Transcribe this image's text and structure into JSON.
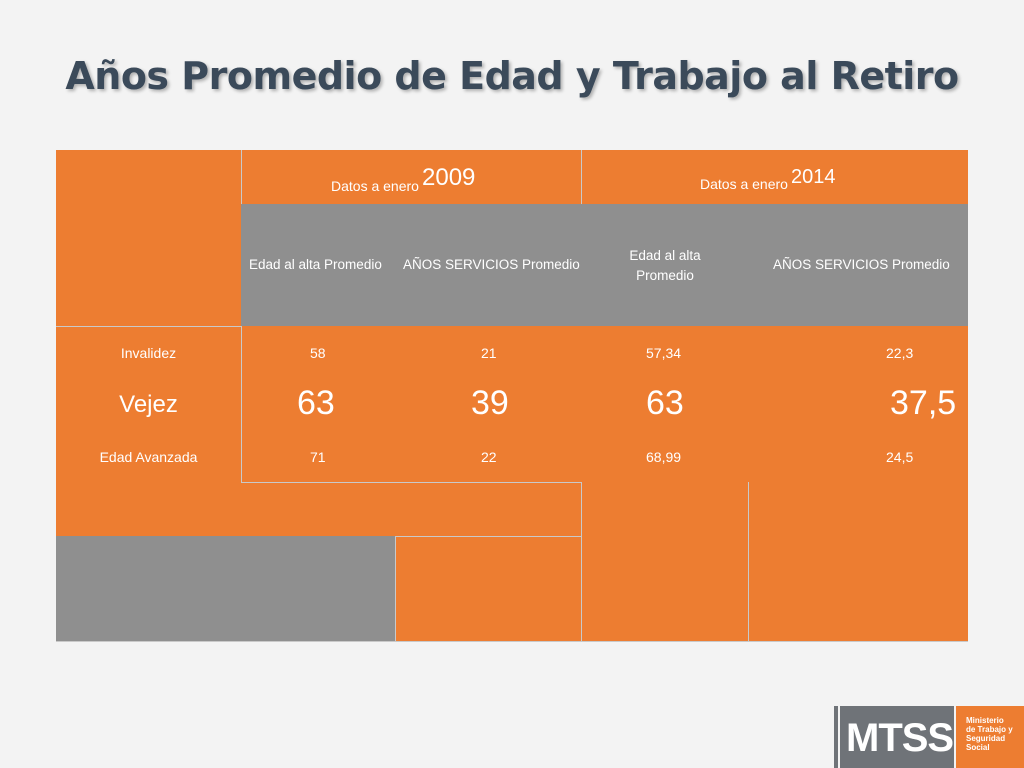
{
  "title": "Años Promedio de Edad y Trabajo al Retiro",
  "table": {
    "groups": [
      {
        "label_prefix": "Datos a enero",
        "year": "2009"
      },
      {
        "label_prefix": "Datos a enero",
        "year": "2014"
      }
    ],
    "subheaders": [
      "Edad al alta Promedio",
      "AÑOS SERVICIOS Promedio",
      "Edad al alta Promedio",
      "AÑOS SERVICIOS Promedio"
    ],
    "rows": [
      {
        "label": "Invalidez",
        "values": [
          "58",
          "21",
          "57,34",
          "22,3"
        ]
      },
      {
        "label": "Vejez",
        "values": [
          "63",
          "39",
          "63",
          "37,5"
        ]
      },
      {
        "label": "Edad Avanzada",
        "values": [
          "71",
          "22",
          "68,99",
          "24,5"
        ]
      }
    ]
  },
  "logo": {
    "acronym": "MTSS",
    "line1": "Ministerio",
    "line2": "de Trabajo y",
    "line3": "Seguridad",
    "line4": "Social"
  },
  "colors": {
    "accent": "#ed7d31",
    "header_gray": "#8f8f8f",
    "title": "#3b4a5a"
  }
}
